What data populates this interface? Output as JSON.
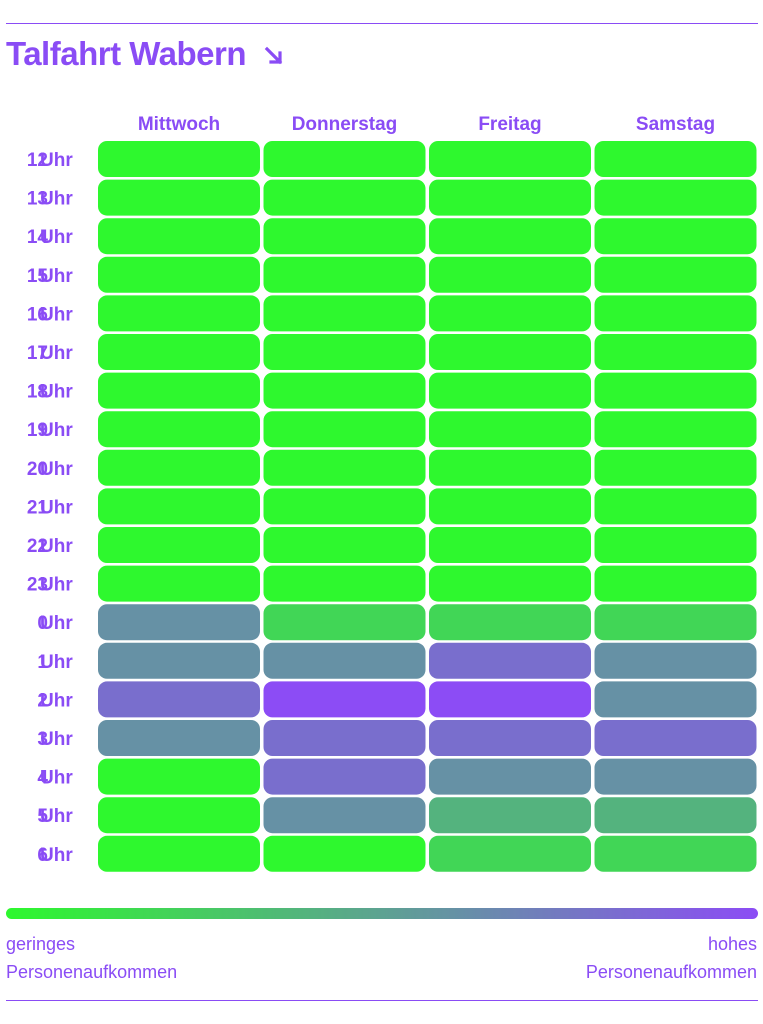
{
  "title": "Talfahrt Wabern",
  "chart_data": {
    "type": "heatmap",
    "columns": [
      "Mittwoch",
      "Donnerstag",
      "Freitag",
      "Samstag"
    ],
    "rows": [
      "12 Uhr",
      "13 Uhr",
      "14 Uhr",
      "15 Uhr",
      "16 Uhr",
      "17 Uhr",
      "18 Uhr",
      "19 Uhr",
      "20 Uhr",
      "21 Uhr",
      "22 Uhr",
      "23 Uhr",
      "0 Uhr",
      "1 Uhr",
      "2 Uhr",
      "3 Uhr",
      "4 Uhr",
      "5 Uhr",
      "6 Uhr"
    ],
    "values": [
      [
        0.0,
        0.0,
        0.0,
        0.0
      ],
      [
        0.0,
        0.0,
        0.0,
        0.0
      ],
      [
        0.0,
        0.0,
        0.0,
        0.0
      ],
      [
        0.0,
        0.0,
        0.0,
        0.0
      ],
      [
        0.0,
        0.0,
        0.0,
        0.0
      ],
      [
        0.0,
        0.0,
        0.0,
        0.0
      ],
      [
        0.0,
        0.0,
        0.0,
        0.0
      ],
      [
        0.0,
        0.0,
        0.0,
        0.0
      ],
      [
        0.0,
        0.0,
        0.0,
        0.0
      ],
      [
        0.0,
        0.0,
        0.0,
        0.0
      ],
      [
        0.0,
        0.0,
        0.0,
        0.0
      ],
      [
        0.0,
        0.0,
        0.0,
        0.0
      ],
      [
        0.6,
        0.2,
        0.2,
        0.2
      ],
      [
        0.6,
        0.6,
        0.8,
        0.6
      ],
      [
        0.8,
        1.0,
        1.0,
        0.6
      ],
      [
        0.6,
        0.8,
        0.8,
        0.8
      ],
      [
        0.0,
        0.8,
        0.6,
        0.6
      ],
      [
        0.0,
        0.6,
        0.4,
        0.4
      ],
      [
        0.0,
        0.0,
        0.2,
        0.2
      ]
    ],
    "scale": {
      "min": 0,
      "max": 1,
      "color_low": "#2ef82e",
      "color_high": "#8c4cf5"
    },
    "legend": {
      "low_label": [
        "geringes",
        "Personenaufkommen"
      ],
      "high_label": [
        "hohes",
        "Personenaufkommen"
      ]
    }
  },
  "colors": {
    "accent": "#8a4cf5",
    "low": "#2ef82e",
    "high": "#8c4cf5"
  }
}
